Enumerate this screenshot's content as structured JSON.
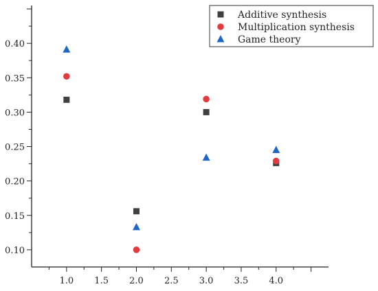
{
  "chart_data": {
    "type": "scatter",
    "title": "",
    "xlabel": "",
    "ylabel": "",
    "xlim": [
      0.5,
      4.75
    ],
    "ylim": [
      0.075,
      0.455
    ],
    "x_ticks": [
      "1.0",
      "1.5",
      "2.0",
      "2.5",
      "3.0",
      "3.5",
      "4.0"
    ],
    "y_ticks": [
      "0.10",
      "0.15",
      "0.20",
      "0.25",
      "0.30",
      "0.35",
      "0.40"
    ],
    "grid": false,
    "legend_position": "top-right",
    "series": [
      {
        "name": "Additive synthesis",
        "marker": "square",
        "color": "#404040",
        "x": [
          1,
          2,
          3,
          4
        ],
        "y": [
          0.318,
          0.156,
          0.3,
          0.226
        ]
      },
      {
        "name": "Multiplication synthesis",
        "marker": "circle",
        "color": "#e23a3f",
        "x": [
          1,
          2,
          3,
          4
        ],
        "y": [
          0.352,
          0.1,
          0.319,
          0.229
        ]
      },
      {
        "name": "Game theory",
        "marker": "triangle",
        "color": "#1f66c9",
        "x": [
          1,
          2,
          3,
          4
        ],
        "y": [
          0.391,
          0.133,
          0.234,
          0.245
        ]
      }
    ]
  }
}
